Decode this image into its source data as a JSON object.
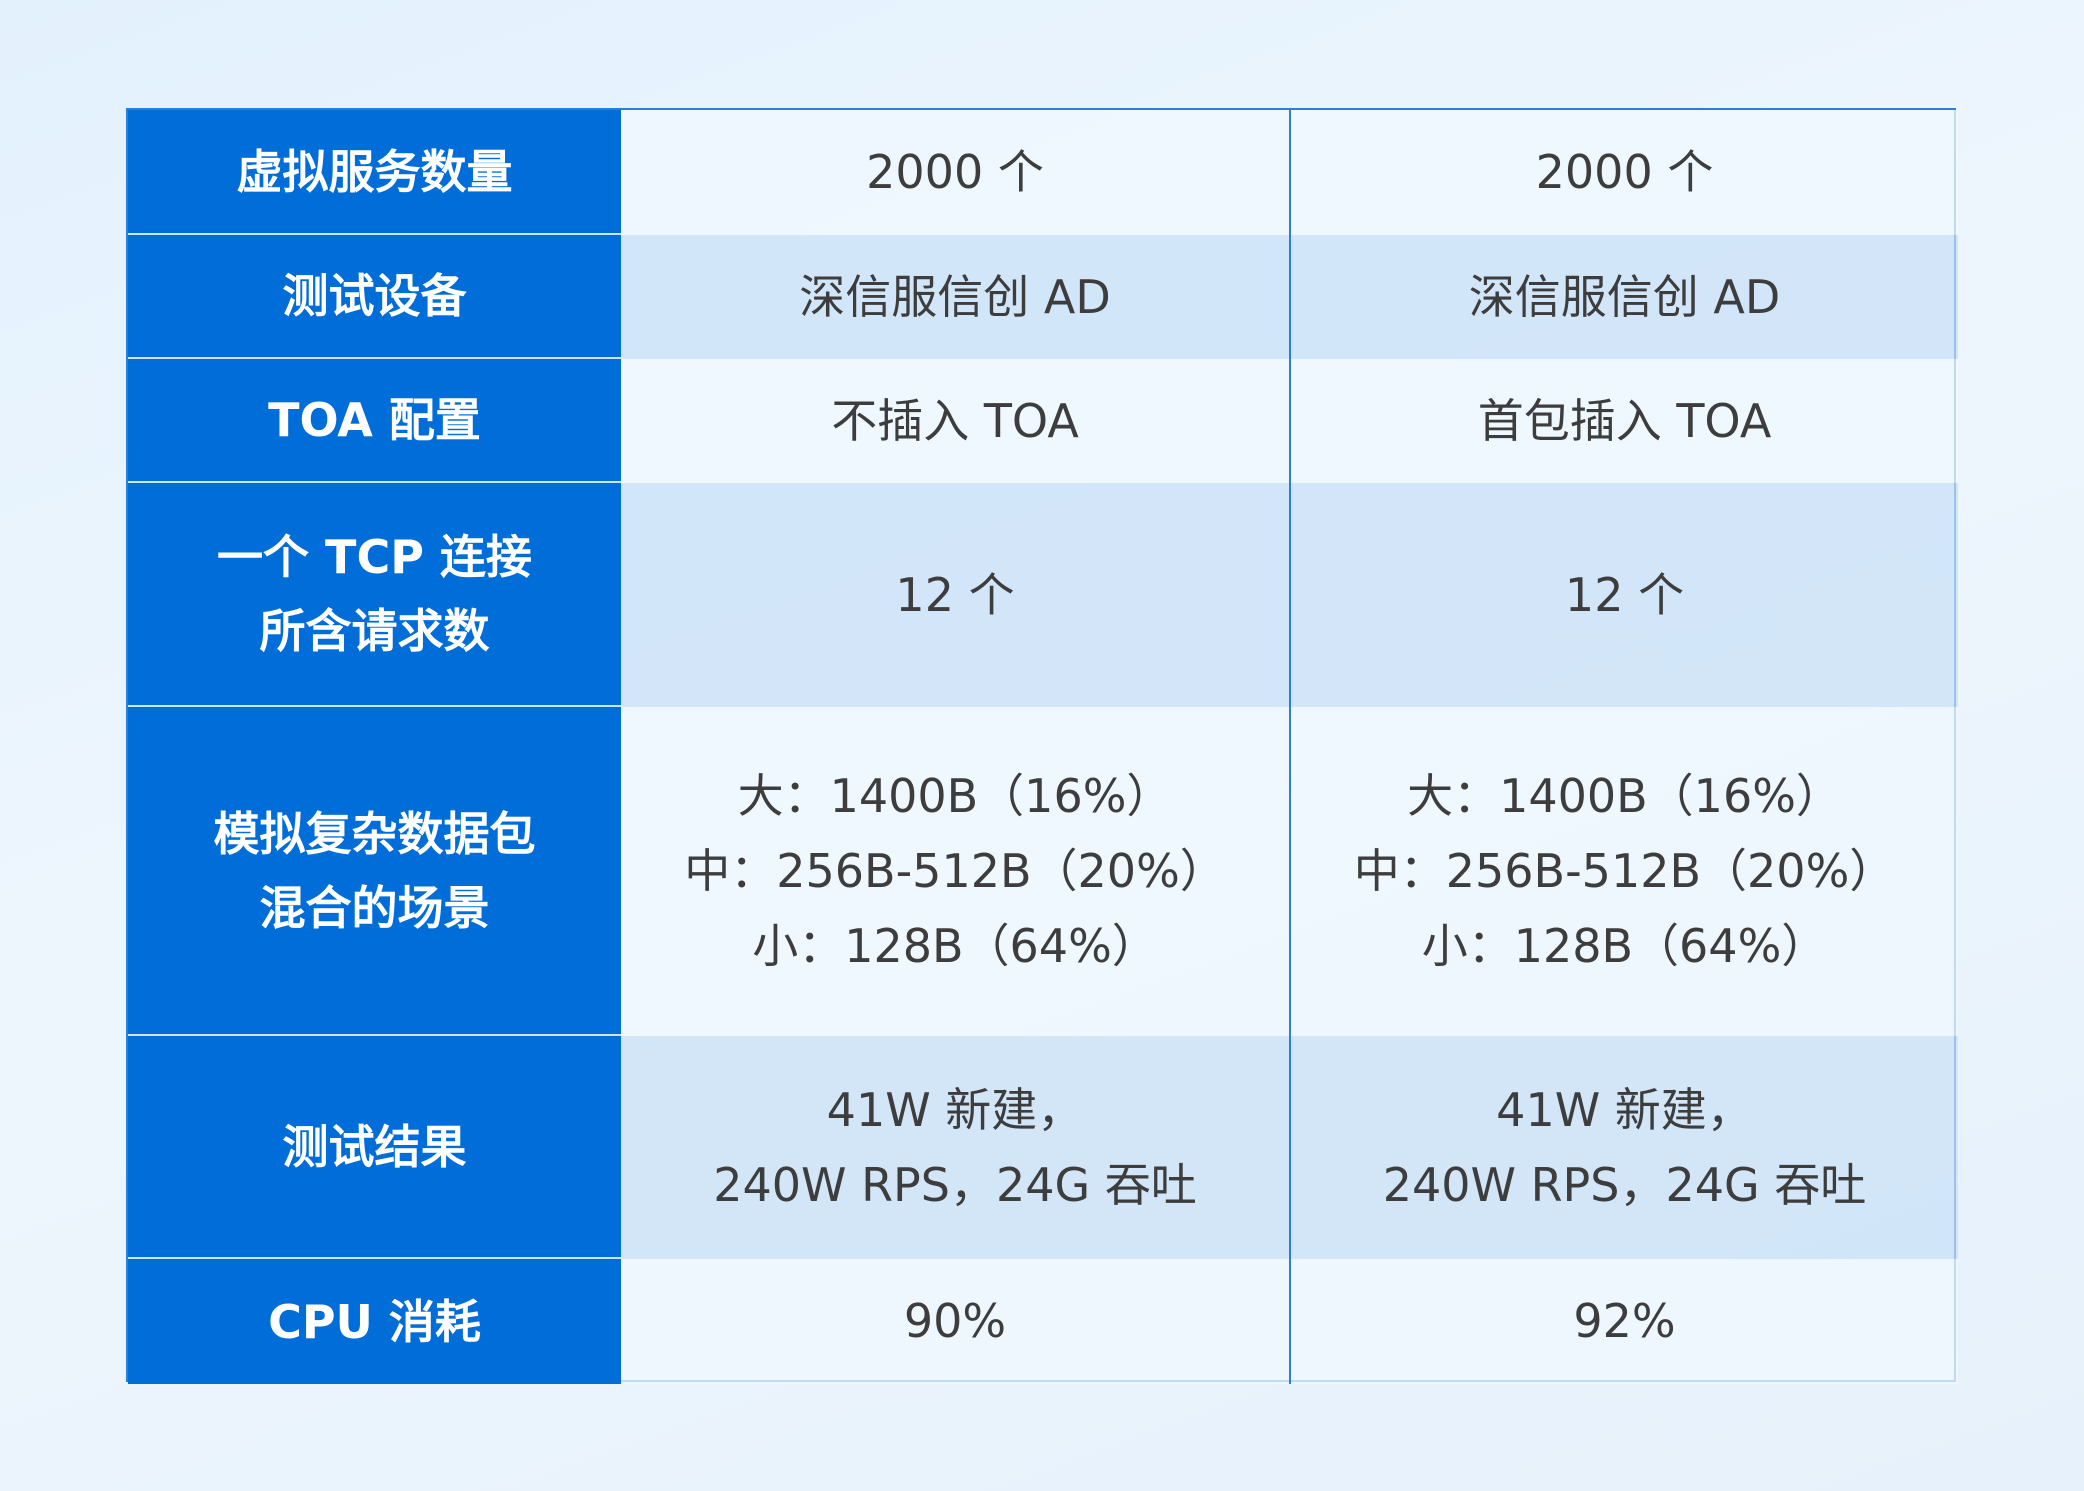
{
  "rows": [
    {
      "label": "虚拟服务数量",
      "col1": "2000 个",
      "col2": "2000 个"
    },
    {
      "label": "测试设备",
      "col1": "深信服信创 AD",
      "col2": "深信服信创 AD"
    },
    {
      "label": "TOA 配置",
      "col1": "不插入 TOA",
      "col2": "首包插入 TOA"
    },
    {
      "label": "一个 TCP 连接\n所含请求数",
      "col1": "12 个",
      "col2": "12 个"
    },
    {
      "label": "模拟复杂数据包\n混合的场景",
      "col1": "大：1400B（16%）\n中：256B-512B（20%）\n小：128B（64%）",
      "col2": "大：1400B（16%）\n中：256B-512B（20%）\n小：128B（64%）"
    },
    {
      "label": "测试结果",
      "col1": "41W 新建，\n240W RPS，24G 吞吐",
      "col2": "41W 新建，\n240W RPS，24G 吞吐"
    },
    {
      "label": "CPU 消耗",
      "col1": "90%",
      "col2": "92%"
    }
  ],
  "colors": {
    "header": "#006dd9",
    "border": "#2a7fd8",
    "text": "#3d3d3d"
  }
}
